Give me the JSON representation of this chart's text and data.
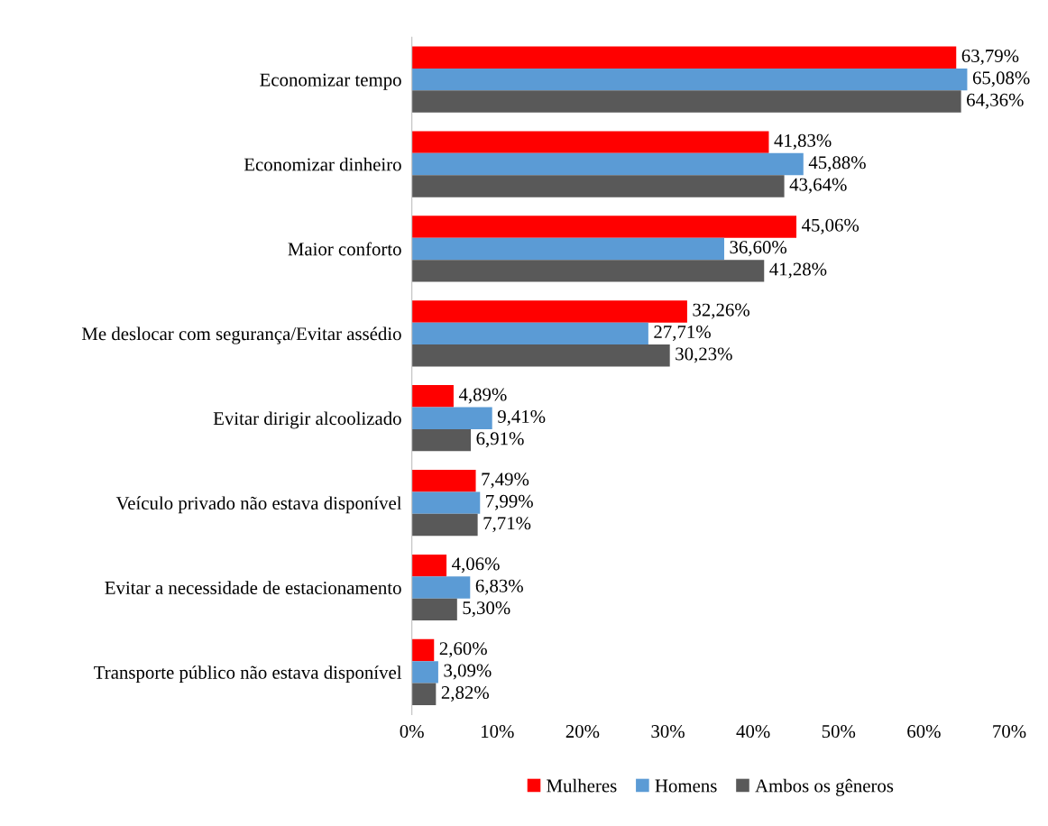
{
  "chart_data": {
    "type": "bar",
    "orientation": "horizontal",
    "categories": [
      "Economizar tempo",
      "Economizar dinheiro",
      "Maior conforto",
      "Me deslocar com segurança/Evitar assédio",
      "Evitar dirigir alcoolizado",
      "Veículo privado não estava disponível",
      "Evitar a necessidade de estacionamento",
      "Transporte público não estava disponível"
    ],
    "series": [
      {
        "name": "Mulheres",
        "color": "#ff0000",
        "values": [
          63.79,
          41.83,
          45.06,
          32.26,
          4.89,
          7.49,
          4.06,
          2.6
        ],
        "value_labels": [
          "63,79%",
          "41,83%",
          "45,06%",
          "32,26%",
          "4,89%",
          "7,49%",
          "4,06%",
          "2,60%"
        ]
      },
      {
        "name": "Homens",
        "color": "#5b9bd5",
        "values": [
          65.08,
          45.88,
          36.6,
          27.71,
          9.41,
          7.99,
          6.83,
          3.09
        ],
        "value_labels": [
          "65,08%",
          "45,88%",
          "36,60%",
          "27,71%",
          "9,41%",
          "7,99%",
          "6,83%",
          "3,09%"
        ]
      },
      {
        "name": "Ambos os gêneros",
        "color": "#595959",
        "values": [
          64.36,
          43.64,
          41.28,
          30.23,
          6.91,
          7.71,
          5.3,
          2.82
        ],
        "value_labels": [
          "64,36%",
          "43,64%",
          "41,28%",
          "30,23%",
          "6,91%",
          "7,71%",
          "5,30%",
          "2,82%"
        ]
      }
    ],
    "xlim": [
      0,
      70
    ],
    "xticks": [
      {
        "value": 0,
        "label": "0%"
      },
      {
        "value": 10,
        "label": "10%"
      },
      {
        "value": 20,
        "label": "20%"
      },
      {
        "value": 30,
        "label": "30%"
      },
      {
        "value": 40,
        "label": "40%"
      },
      {
        "value": 50,
        "label": "50%"
      },
      {
        "value": 60,
        "label": "60%"
      },
      {
        "value": 70,
        "label": "70%"
      }
    ],
    "grid": false,
    "legend": "bottom"
  }
}
